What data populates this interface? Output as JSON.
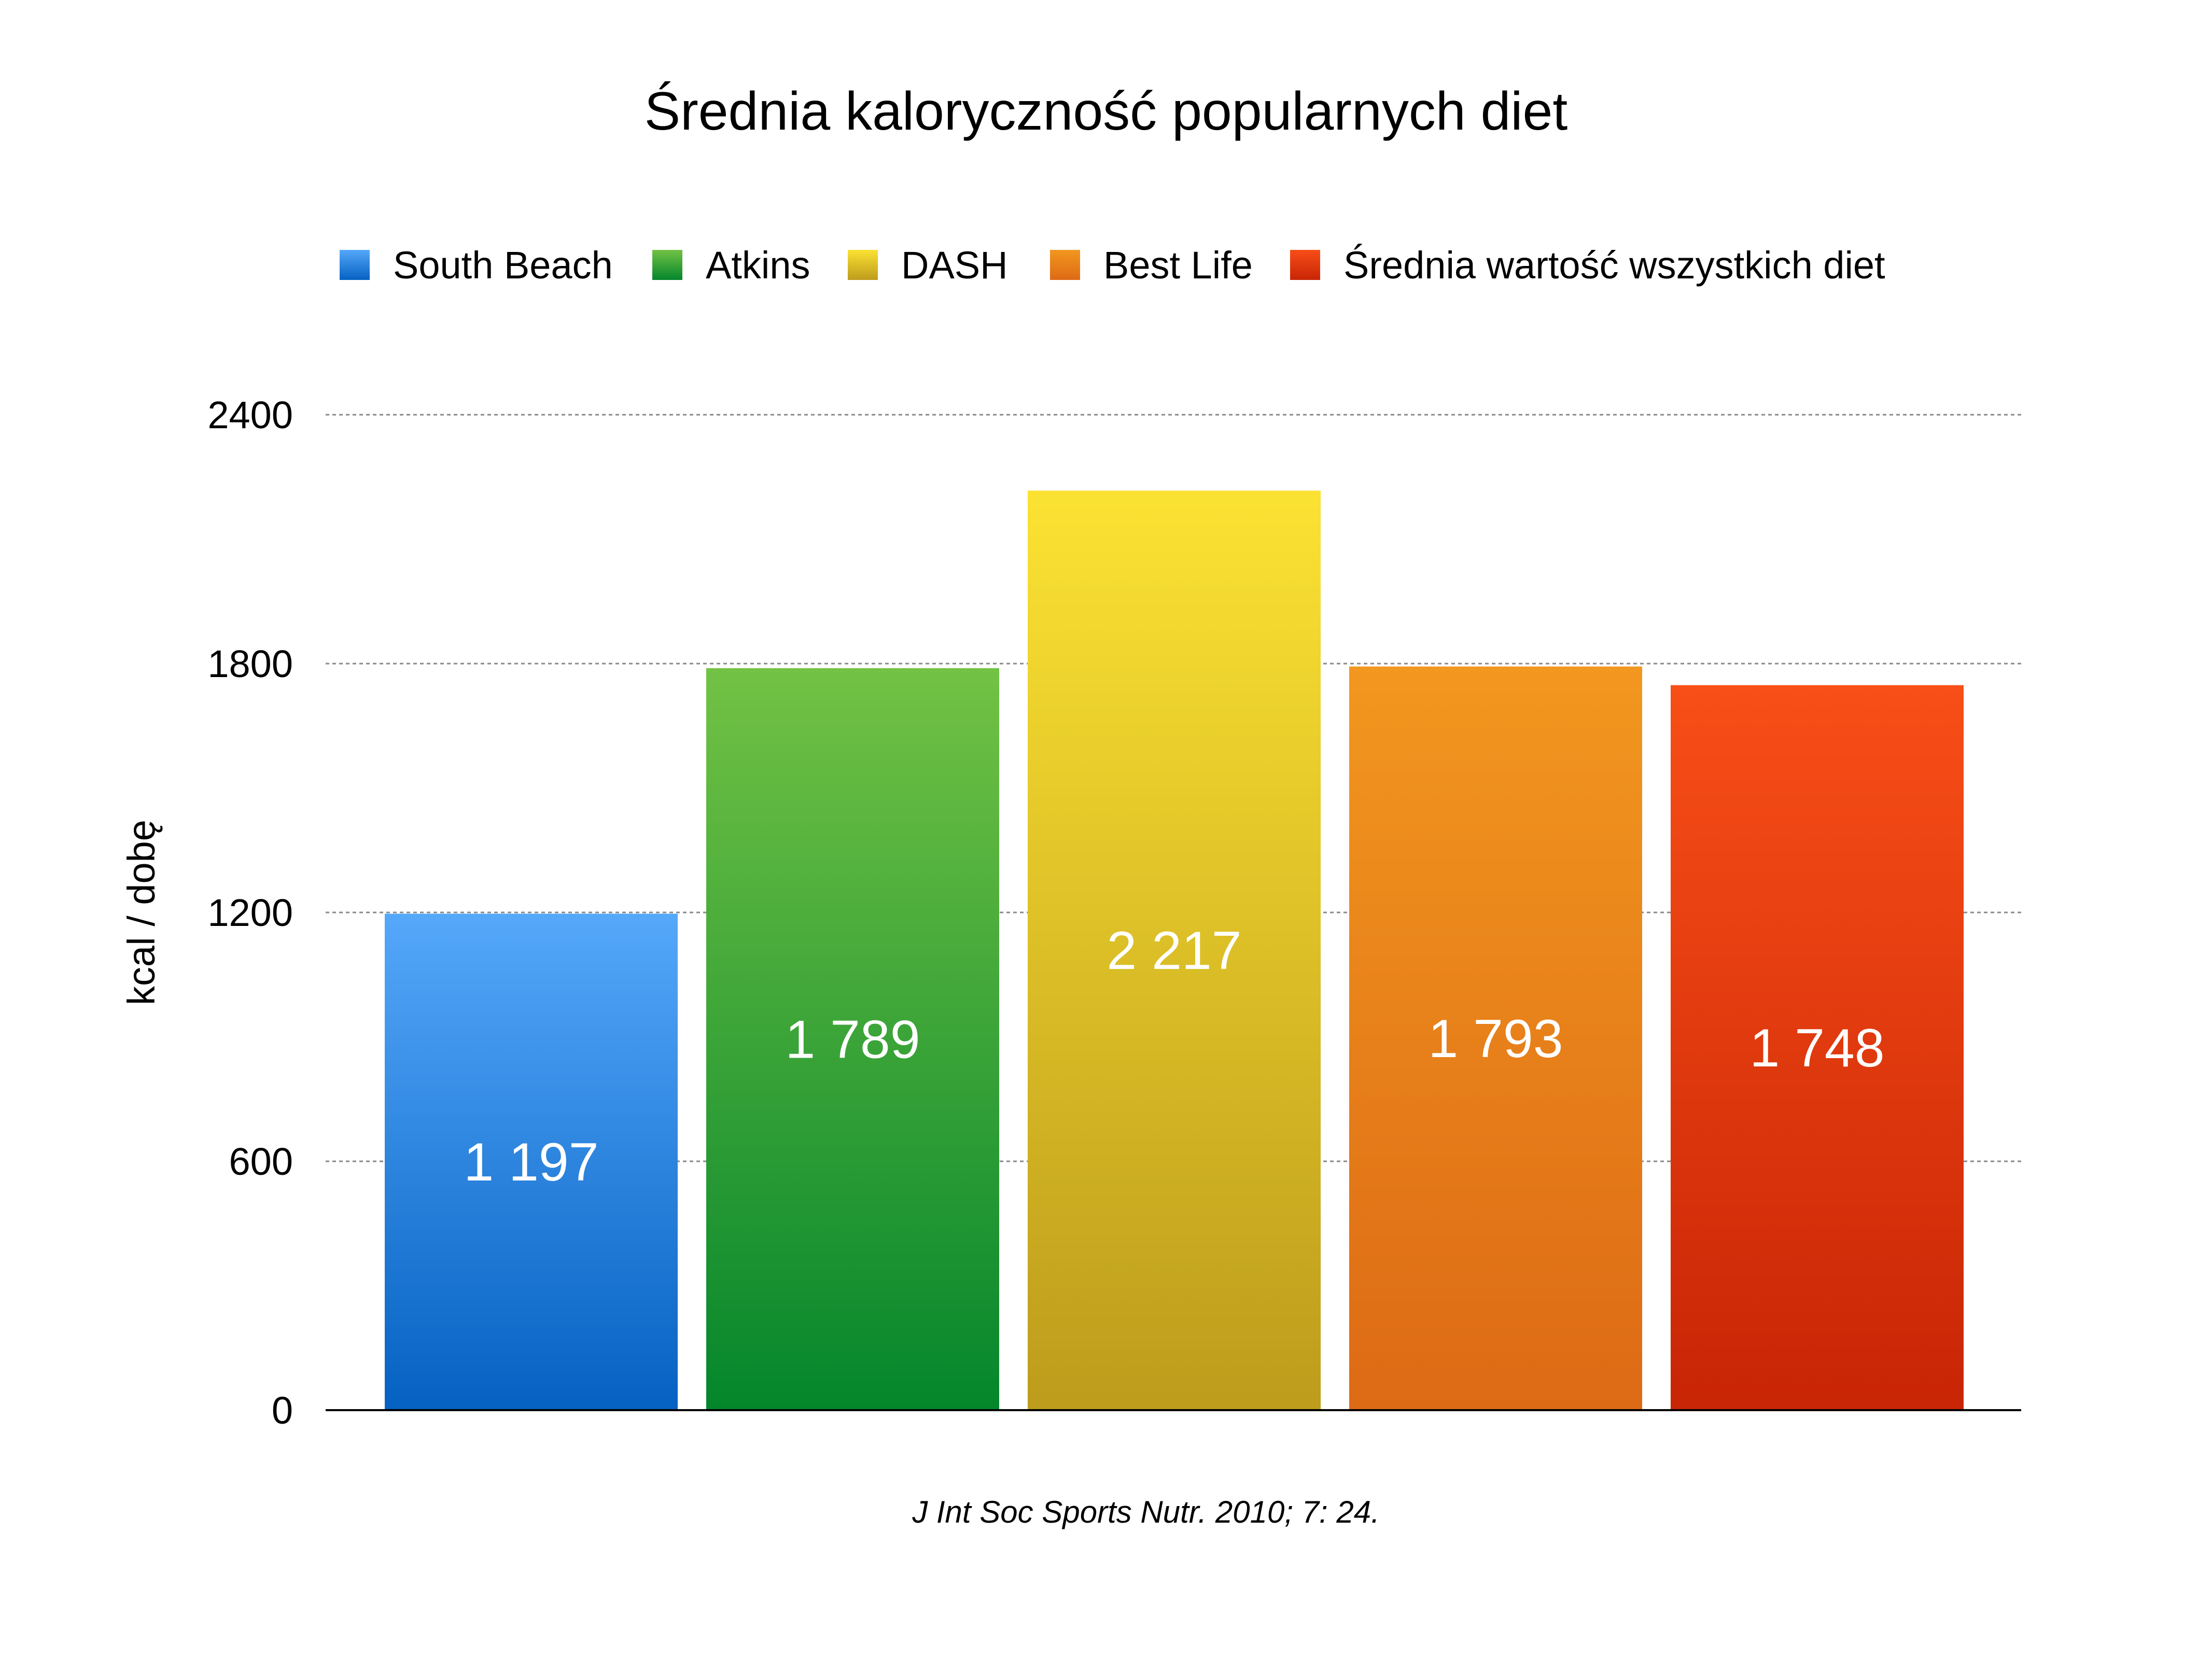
{
  "chart_data": {
    "type": "bar",
    "title": "Średnia kaloryczność popularnych diet",
    "ylabel": "kcal / dobę",
    "xlabel": "",
    "ylim": [
      0,
      2400
    ],
    "yticks": [
      0,
      600,
      1200,
      1800,
      2400
    ],
    "grid": true,
    "legend_position": "top",
    "source": "J Int Soc Sports Nutr. 2010; 7: 24.",
    "categories": [
      "South Beach",
      "Atkins",
      "DASH",
      "Best Life",
      "Średnia wartość wszystkich diet"
    ],
    "values": [
      1197,
      1789,
      2217,
      1793,
      1748
    ],
    "value_labels": [
      "1 197",
      "1 789",
      "2 217",
      "1 793",
      "1 748"
    ],
    "colors": [
      {
        "top": "#55a8fa",
        "bottom": "#0561c2"
      },
      {
        "top": "#72c244",
        "bottom": "#04862c"
      },
      {
        "top": "#fbe232",
        "bottom": "#bd9c1c"
      },
      {
        "top": "#f2971f",
        "bottom": "#dd6a15"
      },
      {
        "top": "#f84e17",
        "bottom": "#c82506"
      }
    ]
  }
}
